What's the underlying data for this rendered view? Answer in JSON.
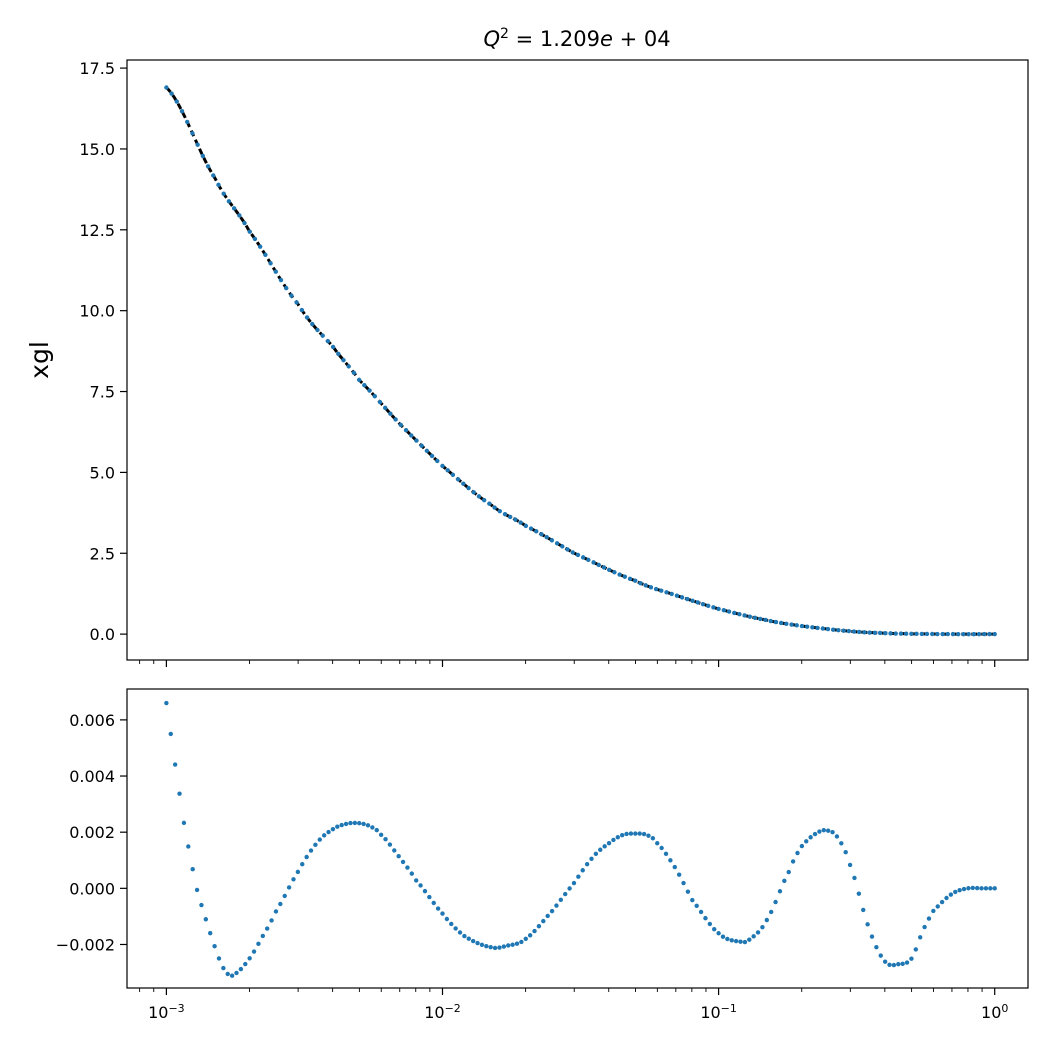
{
  "chart_data": [
    {
      "type": "scatter",
      "panel": "top",
      "title": "Q^2 = 1.209e+04",
      "xlabel": "",
      "ylabel": "xgl",
      "xscale": "log",
      "xlim": [
        0.00072,
        1.32
      ],
      "ylim": [
        -0.8,
        17.75
      ],
      "xticks_shared": true,
      "yticks": [
        "0.0",
        "2.5",
        "5.0",
        "7.5",
        "10.0",
        "12.5",
        "15.0",
        "17.5"
      ],
      "yticks_values": [
        0,
        2.5,
        5,
        7.5,
        10,
        12.5,
        15,
        17.5
      ],
      "series": [
        {
          "color": "#000000",
          "style": "dashed line",
          "x": [
            0.001,
            0.0015,
            0.002,
            0.003,
            0.004,
            0.005,
            0.007,
            0.01,
            0.015,
            0.02,
            0.03,
            0.05,
            0.07,
            0.1,
            0.15,
            0.2,
            0.3,
            0.4,
            0.5,
            0.7,
            1.0
          ],
          "y": [
            16.9,
            14.1,
            12.45,
            10.2,
            8.9,
            7.85,
            6.5,
            5.2,
            4.0,
            3.35,
            2.5,
            1.65,
            1.2,
            0.78,
            0.43,
            0.25,
            0.09,
            0.03,
            0.01,
            0.0,
            0.0
          ]
        },
        {
          "color": "#1f77b4",
          "style": "markers",
          "x": [
            0.001,
            0.0015,
            0.002,
            0.003,
            0.004,
            0.005,
            0.007,
            0.01,
            0.015,
            0.02,
            0.03,
            0.05,
            0.07,
            0.1,
            0.15,
            0.2,
            0.3,
            0.4,
            0.5,
            0.7,
            1.0
          ],
          "y": [
            16.9,
            14.1,
            12.45,
            10.2,
            8.9,
            7.85,
            6.5,
            5.2,
            4.0,
            3.35,
            2.5,
            1.65,
            1.2,
            0.78,
            0.43,
            0.25,
            0.09,
            0.03,
            0.01,
            0.0,
            0.0
          ]
        }
      ]
    },
    {
      "type": "scatter",
      "panel": "bottom",
      "xlabel": "",
      "ylabel": "",
      "xscale": "log",
      "xlim": [
        0.00072,
        1.32
      ],
      "ylim": [
        -0.00355,
        0.0071
      ],
      "xticks": [
        "10^-3",
        "10^-2",
        "10^-1",
        "10^0"
      ],
      "xticks_values": [
        0.001,
        0.01,
        0.1,
        1.0
      ],
      "yticks": [
        "−0.002",
        "0.000",
        "0.002",
        "0.004",
        "0.006"
      ],
      "yticks_values": [
        -0.002,
        0,
        0.002,
        0.004,
        0.006
      ],
      "series": [
        {
          "color": "#1f77b4",
          "style": "markers",
          "x": [
            0.001,
            0.00105,
            0.0011,
            0.00115,
            0.0012,
            0.00125,
            0.0013,
            0.0014,
            0.0015,
            0.0016,
            0.0017,
            0.0018,
            0.002,
            0.0022,
            0.0025,
            0.003,
            0.0035,
            0.004,
            0.0045,
            0.005,
            0.0055,
            0.006,
            0.007,
            0.008,
            0.01,
            0.012,
            0.015,
            0.017,
            0.02,
            0.025,
            0.03,
            0.035,
            0.04,
            0.045,
            0.05,
            0.055,
            0.06,
            0.07,
            0.08,
            0.1,
            0.12,
            0.13,
            0.15,
            0.18,
            0.2,
            0.23,
            0.25,
            0.27,
            0.3,
            0.35,
            0.4,
            0.45,
            0.5,
            0.55,
            0.6,
            0.7,
            0.8,
            0.9,
            1.0
          ],
          "y": [
            0.0066,
            0.0051,
            0.0038,
            0.0025,
            0.0015,
            0.0006,
            -0.0002,
            -0.0012,
            -0.0021,
            -0.0028,
            -0.0031,
            -0.003,
            -0.0025,
            -0.0018,
            -0.0008,
            0.0006,
            0.0016,
            0.0021,
            0.0023,
            0.00232,
            0.0022,
            0.0019,
            0.0011,
            0.0003,
            -0.0009,
            -0.0017,
            -0.0021,
            -0.00205,
            -0.0018,
            -0.0008,
            0.0002,
            0.0011,
            0.0016,
            0.0019,
            0.00195,
            0.0019,
            0.0016,
            0.0007,
            -0.0004,
            -0.0016,
            -0.0019,
            -0.0018,
            -0.0011,
            0.0006,
            0.0015,
            0.002,
            0.00205,
            0.0018,
            0.0008,
            -0.0014,
            -0.0026,
            -0.0027,
            -0.0025,
            -0.0015,
            -0.0008,
            -0.0002,
            0.0,
            0.0,
            0.0
          ]
        }
      ]
    }
  ]
}
